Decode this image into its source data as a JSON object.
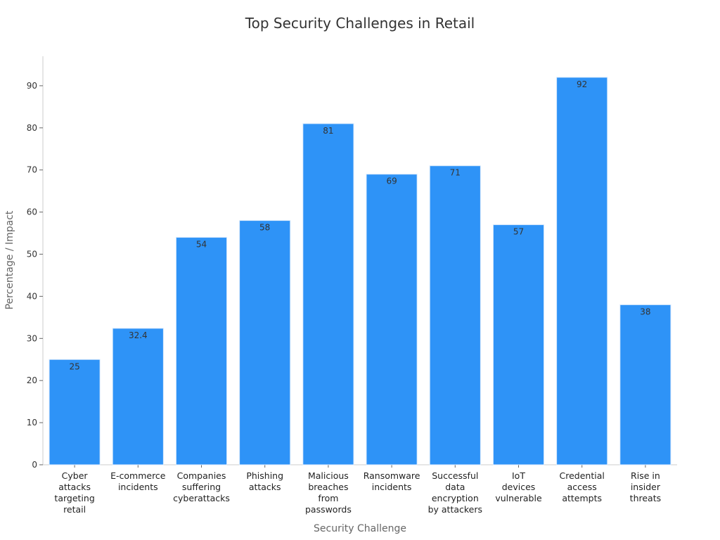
{
  "chart_data": {
    "type": "bar",
    "title": "Top Security Challenges in Retail",
    "xlabel": "Security Challenge",
    "ylabel": "Percentage / Impact",
    "ylim": [
      0,
      97
    ],
    "yticks": [
      0,
      10,
      20,
      30,
      40,
      50,
      60,
      70,
      80,
      90
    ],
    "grid": false,
    "legend": "none",
    "bar_color": "#2e93f7",
    "bar_edge_color": "#d9eafc",
    "categories": [
      "Cyber attacks targeting retail",
      "E-commerce incidents",
      "Companies suffering cyberattacks",
      "Phishing attacks",
      "Malicious breaches from passwords",
      "Ransomware incidents",
      "Successful data encryption by attackers",
      "IoT devices vulnerable",
      "Credential access attempts",
      "Rise in insider threats"
    ],
    "category_lines": [
      [
        "Cyber",
        "attacks",
        "targeting",
        "retail"
      ],
      [
        "E-commerce",
        "incidents"
      ],
      [
        "Companies",
        "suffering",
        "cyberattacks"
      ],
      [
        "Phishing",
        "attacks"
      ],
      [
        "Malicious",
        "breaches",
        "from",
        "passwords"
      ],
      [
        "Ransomware",
        "incidents"
      ],
      [
        "Successful",
        "data",
        "encryption",
        "by attackers"
      ],
      [
        "IoT",
        "devices",
        "vulnerable"
      ],
      [
        "Credential",
        "access",
        "attempts"
      ],
      [
        "Rise in",
        "insider",
        "threats"
      ]
    ],
    "values": [
      25,
      32.4,
      54,
      58,
      81,
      69,
      71,
      57,
      92,
      38
    ],
    "data_labels": [
      "25",
      "32.4",
      "54",
      "58",
      "81",
      "69",
      "71",
      "57",
      "92",
      "38"
    ]
  }
}
